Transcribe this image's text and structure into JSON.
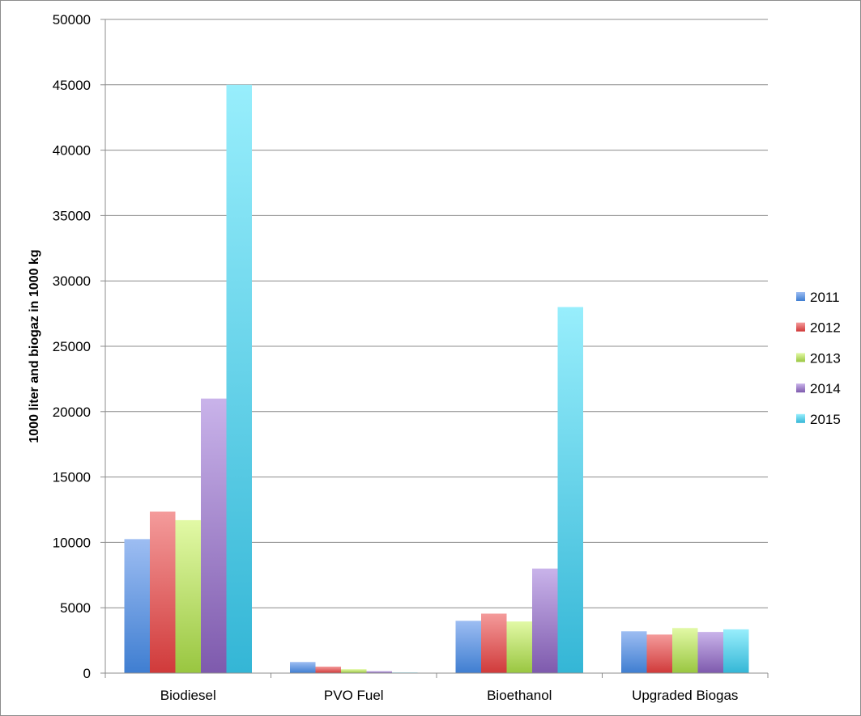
{
  "chart_data": {
    "type": "bar",
    "title": "",
    "xlabel": "",
    "ylabel": "1000 liter and biogaz in 1000 kg",
    "ylim": [
      0,
      50000
    ],
    "yticks": [
      "0",
      "5000",
      "10000",
      "15000",
      "20000",
      "25000",
      "30000",
      "35000",
      "40000",
      "45000",
      "50000"
    ],
    "grid": true,
    "legend_position": "right",
    "categories": [
      "Biodiesel",
      "PVO Fuel",
      "Bioethanol",
      "Upgraded Biogas"
    ],
    "series": [
      {
        "name": "2011",
        "color_light": "#9dbdf2",
        "color_dark": "#3f7ed1",
        "values": [
          10250,
          850,
          4000,
          3200
        ]
      },
      {
        "name": "2012",
        "color_light": "#f49b9b",
        "color_dark": "#d03a3a",
        "values": [
          12350,
          500,
          4550,
          2950
        ]
      },
      {
        "name": "2013",
        "color_light": "#e2f9a6",
        "color_dark": "#99c640",
        "values": [
          11700,
          300,
          3950,
          3450
        ]
      },
      {
        "name": "2014",
        "color_light": "#c9b3ea",
        "color_dark": "#7e5aad",
        "values": [
          21000,
          150,
          8000,
          3150
        ]
      },
      {
        "name": "2015",
        "color_light": "#98eefc",
        "color_dark": "#34b6d6",
        "values": [
          45000,
          50,
          28000,
          3350
        ]
      }
    ]
  }
}
